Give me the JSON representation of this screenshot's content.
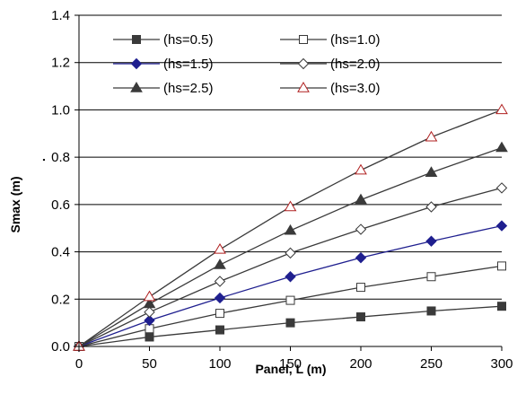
{
  "chart_data": {
    "type": "line",
    "xlabel": "Panel, L (m)",
    "ylabel": "Smax (m)",
    "xlim": [
      0,
      300
    ],
    "ylim": [
      0.0,
      1.4
    ],
    "x_ticks": [
      "0",
      "50",
      "100",
      "150",
      "200",
      "250",
      "300"
    ],
    "y_ticks": [
      "0.0",
      "0.2",
      "0.4",
      "0.6",
      "0.8",
      "1.0",
      "1.2",
      "1.4"
    ],
    "grid": "horizontal",
    "legend": "top",
    "x": [
      0,
      50,
      100,
      150,
      200,
      250,
      300
    ],
    "series": [
      {
        "name": "(hs=0.5)",
        "marker": "square-filled",
        "color": "#3a3a3a",
        "values": [
          0.0,
          0.04,
          0.07,
          0.1,
          0.125,
          0.15,
          0.17
        ]
      },
      {
        "name": "(hs=1.0)",
        "marker": "square-open",
        "color": "#3a3a3a",
        "values": [
          0.0,
          0.075,
          0.14,
          0.195,
          0.25,
          0.295,
          0.34
        ]
      },
      {
        "name": "(hs=1.5)",
        "marker": "diamond-filled",
        "color": "#1f1f8f",
        "values": [
          0.0,
          0.11,
          0.205,
          0.295,
          0.375,
          0.445,
          0.51
        ]
      },
      {
        "name": "(hs=2.0)",
        "marker": "diamond-open",
        "color": "#3a3a3a",
        "values": [
          0.0,
          0.145,
          0.275,
          0.395,
          0.495,
          0.59,
          0.67
        ]
      },
      {
        "name": "(hs=2.5)",
        "marker": "triangle-filled",
        "color": "#3a3a3a",
        "values": [
          0.0,
          0.18,
          0.345,
          0.49,
          0.62,
          0.735,
          0.84
        ]
      },
      {
        "name": "(hs=3.0)",
        "marker": "triangle-open",
        "color": "#3a3a3a",
        "marker_color": "#b02020",
        "values": [
          0.0,
          0.21,
          0.41,
          0.59,
          0.745,
          0.885,
          1.0
        ]
      }
    ]
  },
  "annotation": "."
}
